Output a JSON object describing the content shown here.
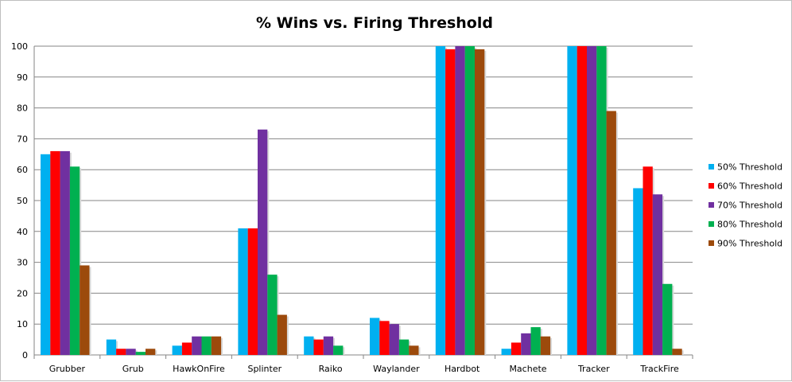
{
  "chart_data": {
    "type": "bar",
    "title": "% Wins vs. Firing Threshold",
    "xlabel": "",
    "ylabel": "",
    "ylim": [
      0,
      100
    ],
    "yticks": [
      0,
      10,
      20,
      30,
      40,
      50,
      60,
      70,
      80,
      90,
      100
    ],
    "grid": true,
    "legend_position": "right",
    "categories": [
      "Grubber",
      "Grub",
      "HawkOnFire",
      "Splinter",
      "Raiko",
      "Waylander",
      "Hardbot",
      "Machete",
      "Tracker",
      "TrackFire"
    ],
    "series": [
      {
        "name": "50% Threshold",
        "color": "#00b0f0",
        "values": [
          65,
          5,
          3,
          41,
          6,
          12,
          100,
          2,
          100,
          54
        ]
      },
      {
        "name": "60% Threshold",
        "color": "#ff0000",
        "values": [
          66,
          2,
          4,
          41,
          5,
          11,
          99,
          4,
          100,
          61
        ]
      },
      {
        "name": "70% Threshold",
        "color": "#7030a0",
        "values": [
          66,
          2,
          6,
          73,
          6,
          10,
          100,
          7,
          100,
          52
        ]
      },
      {
        "name": "80% Threshold",
        "color": "#00b050",
        "values": [
          61,
          1,
          6,
          26,
          3,
          5,
          100,
          9,
          100,
          23
        ]
      },
      {
        "name": "90% Threshold",
        "color": "#9c4a0c",
        "values": [
          29,
          2,
          6,
          13,
          0,
          3,
          99,
          6,
          79,
          2
        ]
      }
    ]
  }
}
